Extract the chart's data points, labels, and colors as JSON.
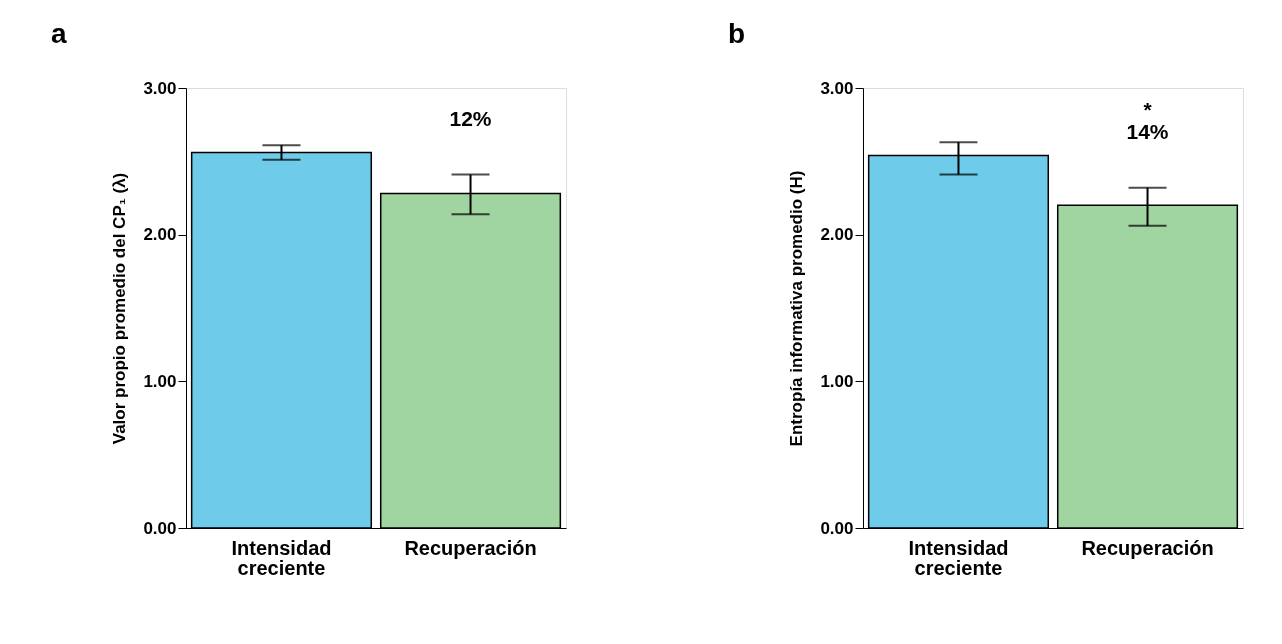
{
  "chart_data": [
    {
      "type": "bar",
      "title": "a",
      "ylabel": "Valor propio promedio del CP₁ (λ)",
      "categories": [
        "Intensidad creciente",
        "Recuperación"
      ],
      "values": [
        2.56,
        2.28
      ],
      "colors": [
        "#6ecbea",
        "#a0d4a0"
      ],
      "errors": [
        [
          2.51,
          2.61
        ],
        [
          2.14,
          2.41
        ]
      ],
      "ylim": [
        0,
        3
      ],
      "yticks": [
        {
          "value": 0,
          "label": "0.00"
        },
        {
          "value": 1,
          "label": "1.00"
        },
        {
          "value": 2,
          "label": "2.00"
        },
        {
          "value": 3,
          "label": "3.00"
        }
      ],
      "grid": false,
      "annotations": [
        "12%"
      ]
    },
    {
      "type": "bar",
      "title": "b",
      "ylabel": "Entropía informativa promedio (H)",
      "categories": [
        "Intensidad creciente",
        "Recuperación"
      ],
      "values": [
        2.54,
        2.2
      ],
      "colors": [
        "#6ecbea",
        "#a0d4a0"
      ],
      "errors": [
        [
          2.41,
          2.63
        ],
        [
          2.06,
          2.32
        ]
      ],
      "ylim": [
        0,
        3
      ],
      "yticks": [
        {
          "value": 0,
          "label": "0.00"
        },
        {
          "value": 1,
          "label": "1.00"
        },
        {
          "value": 2,
          "label": "2.00"
        },
        {
          "value": 3,
          "label": "3.00"
        }
      ],
      "grid": false,
      "annotations": [
        "*",
        "14%"
      ]
    }
  ]
}
